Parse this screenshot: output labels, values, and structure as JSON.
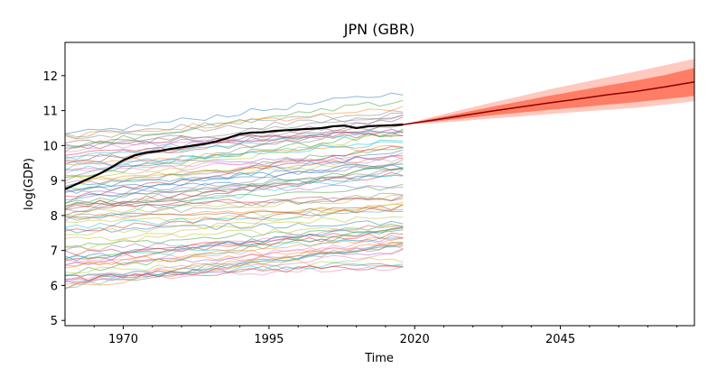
{
  "chart_data": {
    "type": "line",
    "title": "JPN (GBR)",
    "xlabel": "Time",
    "ylabel": "log(GDP)",
    "xlim": [
      1960,
      2068
    ],
    "ylim": [
      4.85,
      12.95
    ],
    "x_ticks": [
      1970,
      1995,
      2020,
      2045
    ],
    "y_ticks": [
      5,
      6,
      7,
      8,
      9,
      10,
      11,
      12
    ],
    "grid": false,
    "legend": "none",
    "background_lines": {
      "description_note": "",
      "x_start": 1960,
      "x_end": 2018,
      "count": 80,
      "y_start_range": [
        5.8,
        10.4
      ],
      "y_end_range": [
        6.5,
        11.3
      ]
    },
    "series": [
      {
        "name": "",
        "color": "#000000",
        "x": [
          1960,
          1962,
          1964,
          1966,
          1968,
          1970,
          1972,
          1974,
          1976,
          1978,
          1980,
          1982,
          1984,
          1986,
          1988,
          1990,
          1992,
          1994,
          1996,
          1998,
          2000,
          2002,
          2004,
          2006,
          2008,
          2010,
          2012,
          2014,
          2016,
          2018
        ],
        "values": [
          8.75,
          8.9,
          9.05,
          9.2,
          9.38,
          9.58,
          9.72,
          9.8,
          9.84,
          9.9,
          9.95,
          10.0,
          10.05,
          10.12,
          10.22,
          10.33,
          10.37,
          10.38,
          10.42,
          10.44,
          10.46,
          10.48,
          10.5,
          10.55,
          10.57,
          10.5,
          10.55,
          10.57,
          10.58,
          10.6
        ]
      },
      {
        "name": "",
        "color": "#8b0000",
        "x": [
          2018,
          2023,
          2028,
          2033,
          2038,
          2043,
          2048,
          2053,
          2058,
          2063,
          2068
        ],
        "values": [
          10.6,
          10.72,
          10.85,
          10.98,
          11.1,
          11.22,
          11.33,
          11.45,
          11.55,
          11.68,
          11.82
        ],
        "band_inner_lower": [
          10.6,
          10.68,
          10.77,
          10.86,
          10.94,
          11.02,
          11.09,
          11.17,
          11.24,
          11.33,
          11.42
        ],
        "band_inner_upper": [
          10.6,
          10.77,
          10.93,
          11.1,
          11.26,
          11.42,
          11.57,
          11.72,
          11.86,
          12.02,
          12.22
        ],
        "band_outer_lower": [
          10.6,
          10.64,
          10.7,
          10.77,
          10.83,
          10.9,
          10.96,
          11.02,
          11.08,
          11.17,
          11.27
        ],
        "band_outer_upper": [
          10.6,
          10.82,
          11.02,
          11.22,
          11.41,
          11.6,
          11.78,
          11.95,
          12.12,
          12.3,
          12.48
        ]
      }
    ]
  }
}
